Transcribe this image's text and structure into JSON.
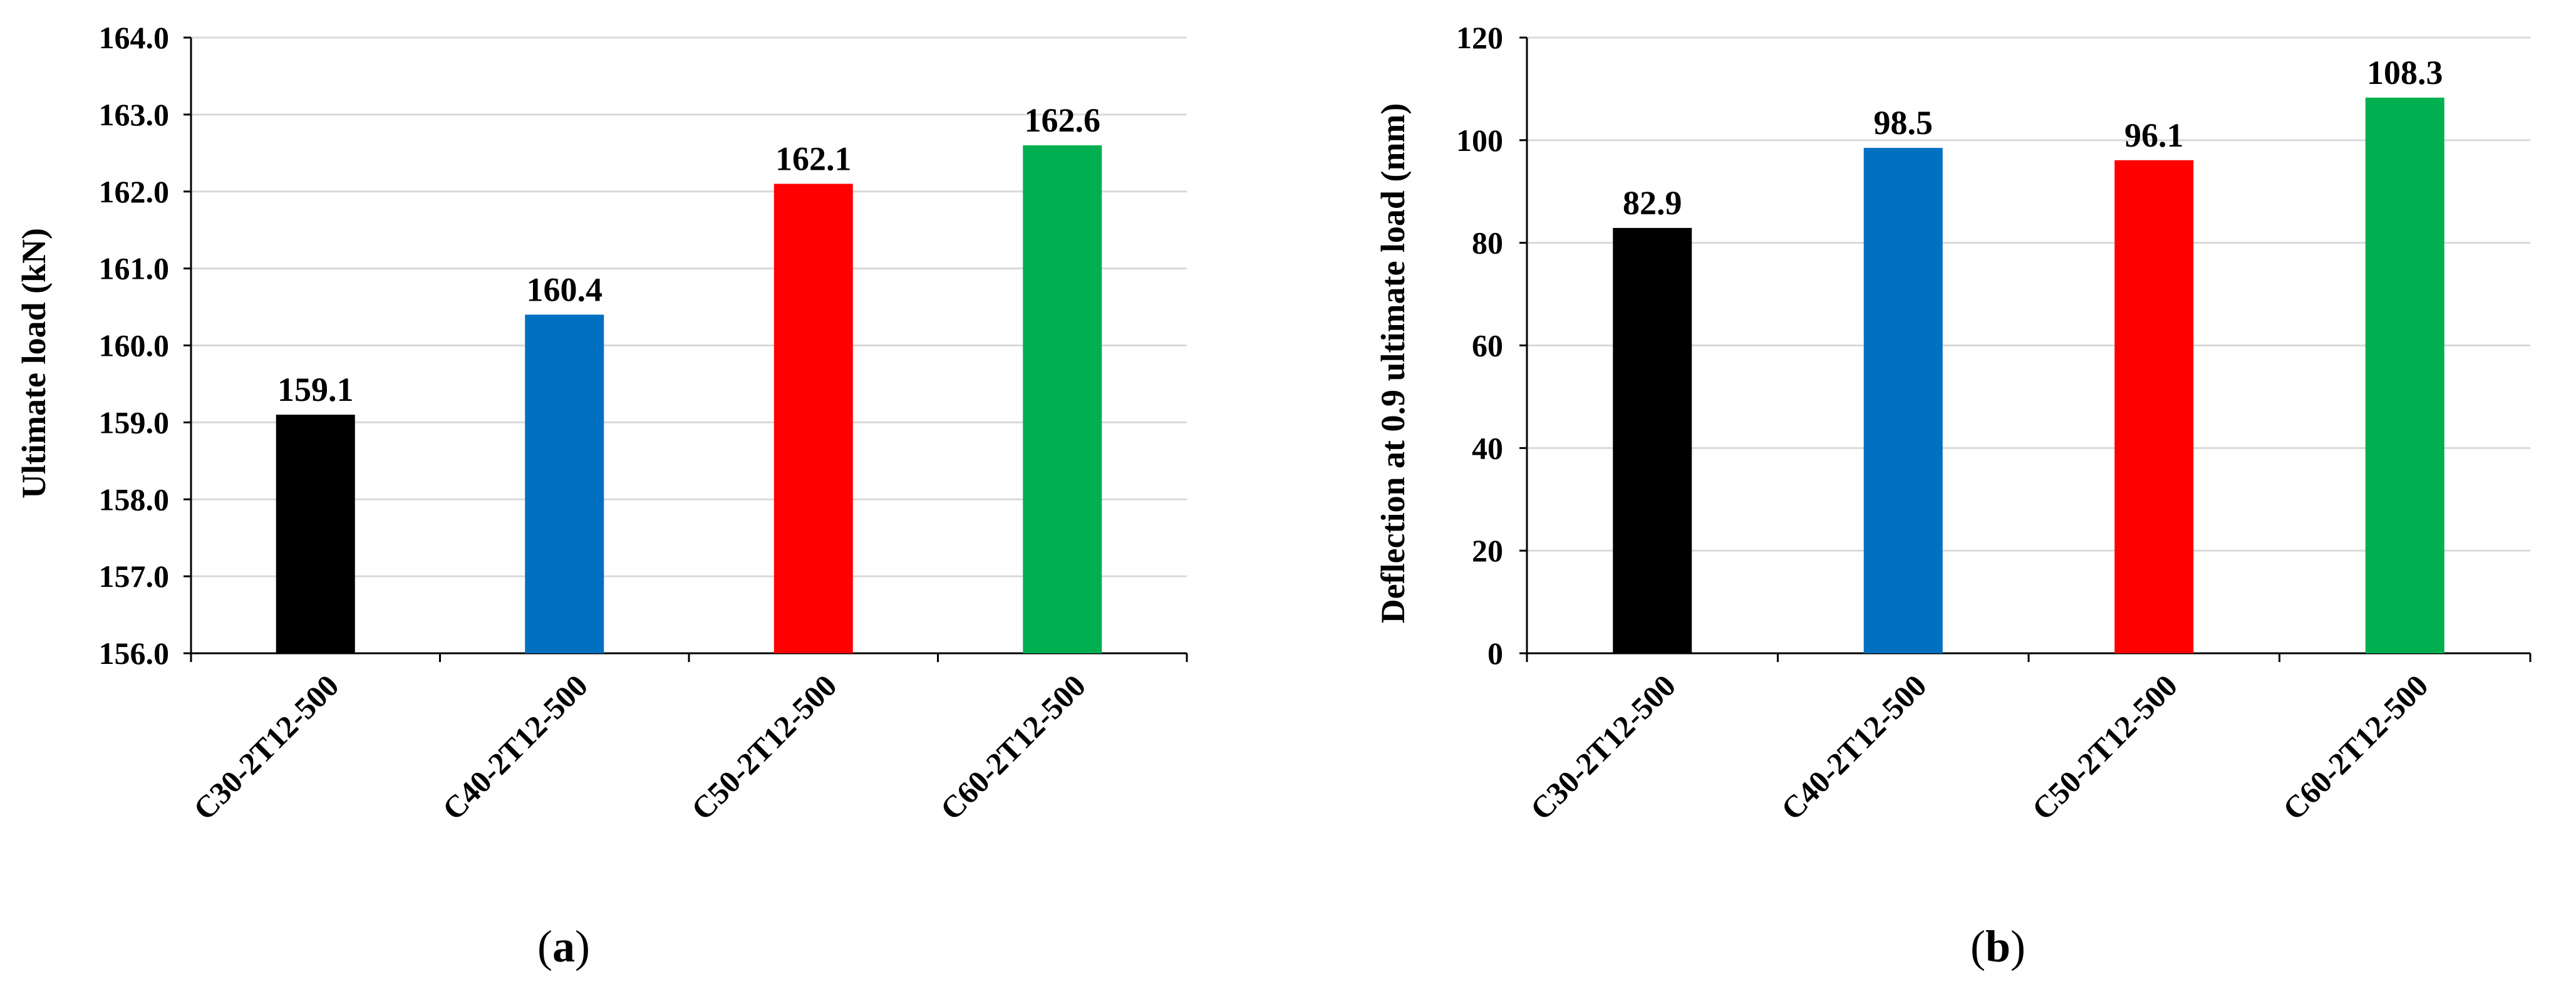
{
  "chart_data": [
    {
      "type": "bar",
      "panel_caption": "(a)",
      "caption_letter": "a",
      "categories": [
        "C30-2T12-500",
        "C40-2T12-500",
        "C50-2T12-500",
        "C60-2T12-500"
      ],
      "values": [
        159.1,
        160.4,
        162.1,
        162.6
      ],
      "value_labels": [
        "159.1",
        "160.4",
        "162.1",
        "162.6"
      ],
      "bar_colors": [
        "#000000",
        "#0070C0",
        "#FF0000",
        "#00B050"
      ],
      "xlabel": "",
      "ylabel": "Ultimate load (kN)",
      "ylim": [
        156.0,
        164.0
      ],
      "yticks": [
        156.0,
        157.0,
        158.0,
        159.0,
        160.0,
        161.0,
        162.0,
        163.0,
        164.0
      ],
      "ytick_labels": [
        "156.0",
        "157.0",
        "158.0",
        "159.0",
        "160.0",
        "161.0",
        "162.0",
        "163.0",
        "164.0"
      ],
      "grid": true
    },
    {
      "type": "bar",
      "panel_caption": "(b)",
      "caption_letter": "b",
      "categories": [
        "C30-2T12-500",
        "C40-2T12-500",
        "C50-2T12-500",
        "C60-2T12-500"
      ],
      "values": [
        82.9,
        98.5,
        96.1,
        108.3
      ],
      "value_labels": [
        "82.9",
        "98.5",
        "96.1",
        "108.3"
      ],
      "bar_colors": [
        "#000000",
        "#0070C0",
        "#FF0000",
        "#00B050"
      ],
      "xlabel": "",
      "ylabel": "Deflection at 0.9 ultimate load (mm)",
      "ylim": [
        0,
        120
      ],
      "yticks": [
        0,
        20,
        40,
        60,
        80,
        100,
        120
      ],
      "ytick_labels": [
        "0",
        "20",
        "40",
        "60",
        "80",
        "100",
        "120"
      ],
      "grid": true
    }
  ]
}
